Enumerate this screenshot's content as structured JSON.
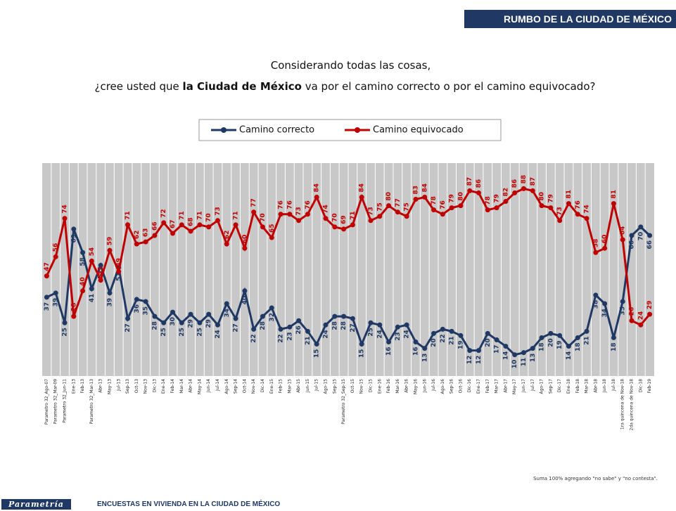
{
  "header": {
    "title": "RUMBO DE LA CIUDAD DE MÉXICO"
  },
  "footer": {
    "brand": "Parametría",
    "text": "ENCUESTAS EN VIVIENDA EN LA CIUDAD DE MÉXICO"
  },
  "chart_data": {
    "type": "line",
    "title": "Considerando todas las cosas,",
    "subtitle": [
      "¿cree usted que ",
      "la Ciudad de México",
      " va por el camino correcto o por el camino equivocado?"
    ],
    "note": "Suma 100% agregando \"no sabe\" y \"no contesta\".",
    "categories": [
      "Parametro 32_Ago-07",
      "Parametro 32_Mar-09",
      "Parametro 32_Jun-11",
      "Ene-13",
      "Feb-13",
      "Parametro 32_Mar-13",
      "Abr-13",
      "May-13",
      "Jul-13",
      "Sep-13",
      "Oct-13",
      "Nov-13",
      "Dic-13",
      "Ene-14",
      "Feb-14",
      "Mar-14",
      "Abr-14",
      "May-14",
      "Jun-14",
      "Jul-14",
      "Ago-14",
      "Sep-14",
      "Oct-14",
      "Nov-14",
      "Dic-14",
      "Ene-15",
      "Feb-15",
      "Mar-15",
      "Abr-15",
      "Jun-15",
      "Jul-15",
      "Ago-15",
      "Sep-15",
      "Parametro 32_Sep-15",
      "Oct-15",
      "Nov-15",
      "Dic-15",
      "Ene-16",
      "Feb-16",
      "Mar-16",
      "Abr-16",
      "May-16",
      "Jun-16",
      "Jul-16",
      "Ago-16",
      "Sep-16",
      "Oct-16",
      "Dic-16",
      "Ene-17",
      "Feb-17",
      "Mar-17",
      "Abr-17",
      "May-17",
      "Jun-17",
      "Jul-17",
      "Ago-17",
      "Sep-17",
      "Dic-17",
      "Ene-18",
      "Feb-18",
      "Mar-18",
      "Abr-18",
      "Jun-18",
      "Jul-18",
      "1ra quincena de Nov-18",
      "2da quincena de Nov-18",
      "Dic-18",
      "Feb-19"
    ],
    "series": [
      {
        "name": "Camino correcto",
        "color": "#1f3864",
        "values": [
          37,
          39,
          25,
          69,
          58,
          41,
          52,
          39,
          51,
          27,
          36,
          35,
          28,
          25,
          30,
          25,
          29,
          25,
          29,
          24,
          34,
          27,
          40,
          22,
          28,
          32,
          22,
          23,
          26,
          21,
          15,
          24,
          28,
          28,
          27,
          15,
          25,
          24,
          16,
          23,
          24,
          16,
          13,
          20,
          22,
          21,
          19,
          12,
          12,
          20,
          17,
          14,
          10,
          11,
          13,
          18,
          20,
          19,
          14,
          18,
          21,
          38,
          34,
          18,
          35,
          66,
          70,
          66
        ]
      },
      {
        "name": "Camino equivocado",
        "color": "#c00000",
        "values": [
          47,
          56,
          74,
          28,
          40,
          54,
          45,
          59,
          49,
          71,
          62,
          63,
          66,
          72,
          67,
          71,
          68,
          71,
          70,
          73,
          62,
          71,
          60,
          77,
          70,
          65,
          76,
          76,
          73,
          76,
          84,
          74,
          70,
          69,
          71,
          84,
          73,
          75,
          80,
          77,
          75,
          83,
          84,
          78,
          76,
          79,
          80,
          87,
          86,
          78,
          79,
          82,
          86,
          88,
          87,
          80,
          79,
          73,
          81,
          76,
          74,
          58,
          60,
          81,
          64,
          26,
          24,
          29
        ]
      }
    ],
    "ylim": [
      0,
      100
    ],
    "legend": "top"
  }
}
